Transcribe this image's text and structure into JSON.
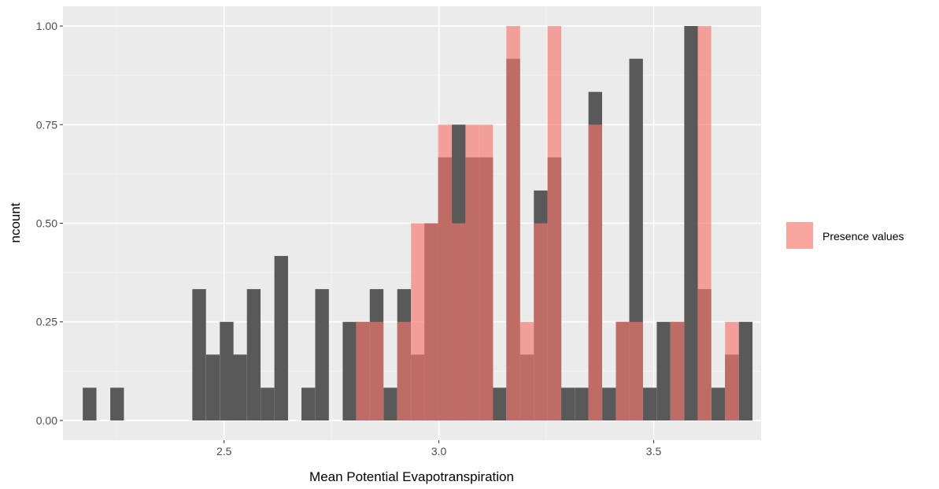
{
  "chart_data": {
    "type": "bar",
    "xlabel": "Mean Potential Evapotranspiration",
    "ylabel": "ncount",
    "xlim": [
      2.125,
      3.75
    ],
    "ylim": [
      -0.05,
      1.05
    ],
    "x_ticks": [
      2.5,
      3.0,
      3.5
    ],
    "x_tick_labels": [
      "2.5",
      "3.0",
      "3.5"
    ],
    "y_ticks": [
      0,
      0.25,
      0.5,
      0.75,
      1.0
    ],
    "y_tick_labels": [
      "0.00",
      "0.25",
      "0.50",
      "0.75",
      "1.00"
    ],
    "bin_width": 0.0318,
    "grid": true,
    "legend_position": "right",
    "legend": [
      {
        "label": "Presence values",
        "color": "#f8766d"
      }
    ],
    "series": [
      {
        "name": "",
        "color": "#595959",
        "bins": [
          {
            "x": 2.187,
            "y": 0.083
          },
          {
            "x": 2.251,
            "y": 0.083
          },
          {
            "x": 2.442,
            "y": 0.333
          },
          {
            "x": 2.474,
            "y": 0.167
          },
          {
            "x": 2.506,
            "y": 0.25
          },
          {
            "x": 2.537,
            "y": 0.167
          },
          {
            "x": 2.569,
            "y": 0.333
          },
          {
            "x": 2.601,
            "y": 0.083
          },
          {
            "x": 2.633,
            "y": 0.417
          },
          {
            "x": 2.696,
            "y": 0.083
          },
          {
            "x": 2.728,
            "y": 0.333
          },
          {
            "x": 2.792,
            "y": 0.25
          },
          {
            "x": 2.823,
            "y": 0.25
          },
          {
            "x": 2.855,
            "y": 0.333
          },
          {
            "x": 2.887,
            "y": 0.083
          },
          {
            "x": 2.919,
            "y": 0.333
          },
          {
            "x": 2.951,
            "y": 0.167
          },
          {
            "x": 2.982,
            "y": 0.5
          },
          {
            "x": 3.014,
            "y": 0.667
          },
          {
            "x": 3.046,
            "y": 0.75
          },
          {
            "x": 3.078,
            "y": 0.667
          },
          {
            "x": 3.11,
            "y": 0.667
          },
          {
            "x": 3.141,
            "y": 0.083
          },
          {
            "x": 3.173,
            "y": 0.917
          },
          {
            "x": 3.205,
            "y": 0.167
          },
          {
            "x": 3.237,
            "y": 0.583
          },
          {
            "x": 3.269,
            "y": 0.667
          },
          {
            "x": 3.3,
            "y": 0.083
          },
          {
            "x": 3.332,
            "y": 0.083
          },
          {
            "x": 3.364,
            "y": 0.833
          },
          {
            "x": 3.396,
            "y": 0.083
          },
          {
            "x": 3.428,
            "y": 0.25
          },
          {
            "x": 3.459,
            "y": 0.917
          },
          {
            "x": 3.491,
            "y": 0.083
          },
          {
            "x": 3.523,
            "y": 0.25
          },
          {
            "x": 3.555,
            "y": 0.25
          },
          {
            "x": 3.587,
            "y": 1.0
          },
          {
            "x": 3.618,
            "y": 0.333
          },
          {
            "x": 3.65,
            "y": 0.083
          },
          {
            "x": 3.682,
            "y": 0.167
          },
          {
            "x": 3.714,
            "y": 0.25
          }
        ]
      },
      {
        "name": "Presence values",
        "color": "#f8766d",
        "bins": [
          {
            "x": 2.823,
            "y": 0.25
          },
          {
            "x": 2.855,
            "y": 0.25
          },
          {
            "x": 2.919,
            "y": 0.25
          },
          {
            "x": 2.951,
            "y": 0.5
          },
          {
            "x": 2.982,
            "y": 0.5
          },
          {
            "x": 3.014,
            "y": 0.75
          },
          {
            "x": 3.046,
            "y": 0.5
          },
          {
            "x": 3.078,
            "y": 0.75
          },
          {
            "x": 3.11,
            "y": 0.75
          },
          {
            "x": 3.173,
            "y": 1.0
          },
          {
            "x": 3.205,
            "y": 0.25
          },
          {
            "x": 3.237,
            "y": 0.5
          },
          {
            "x": 3.269,
            "y": 1.0
          },
          {
            "x": 3.364,
            "y": 0.75
          },
          {
            "x": 3.428,
            "y": 0.25
          },
          {
            "x": 3.459,
            "y": 0.25
          },
          {
            "x": 3.555,
            "y": 0.25
          },
          {
            "x": 3.618,
            "y": 1.0
          },
          {
            "x": 3.682,
            "y": 0.25
          }
        ]
      }
    ]
  }
}
